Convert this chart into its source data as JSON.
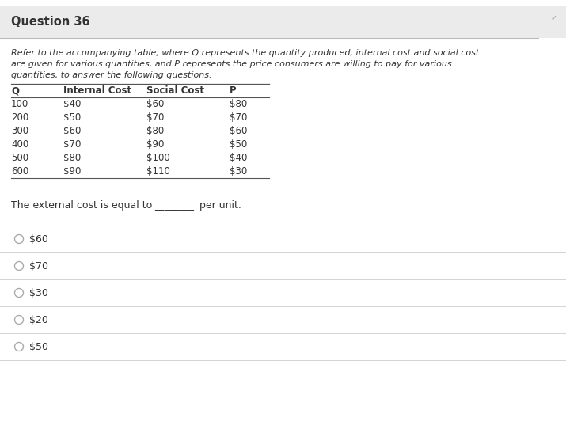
{
  "title": "Question 36",
  "description_lines": [
    "Refer to the accompanying table, where Q represents the quantity produced, internal cost and social cost",
    "are given for various quantities, and P represents the price consumers are willing to pay for various",
    "quantities, to answer the following questions."
  ],
  "table_headers": [
    "Q",
    "Internal Cost",
    "Social Cost",
    "P"
  ],
  "table_data": [
    [
      "100",
      "$40",
      "$60",
      "$80"
    ],
    [
      "200",
      "$50",
      "$70",
      "$70"
    ],
    [
      "300",
      "$60",
      "$80",
      "$60"
    ],
    [
      "400",
      "$70",
      "$90",
      "$50"
    ],
    [
      "500",
      "$80",
      "$100",
      "$40"
    ],
    [
      "600",
      "$90",
      "$110",
      "$30"
    ]
  ],
  "question_text_parts": [
    "The external cost is equal to ",
    "________ ",
    "per unit."
  ],
  "options": [
    "$60",
    "$70",
    "$30",
    "$20",
    "$50"
  ],
  "bg_color": "#ffffff",
  "title_bg": "#ebebeb",
  "text_color": "#333333",
  "line_color": "#cccccc",
  "table_line_color": "#555555",
  "title_fontsize": 10.5,
  "body_fontsize": 8.5,
  "table_fontsize": 8.5,
  "option_fontsize": 9.0
}
